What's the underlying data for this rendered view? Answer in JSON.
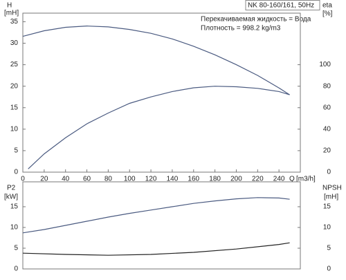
{
  "chart_data": [
    {
      "type": "line",
      "title": "NK 80-160/161, 50Hz",
      "annotations": [
        "Перекачиваемая жидкость = Вода",
        "Плотность = 998.2 kg/m3"
      ],
      "ylabel": "H",
      "yunit": "[mH]",
      "y2label": "eta",
      "y2unit": "[%]",
      "xlabel": "Q",
      "xunit": "[m3/h]",
      "xlim": [
        0,
        260
      ],
      "xticks": [
        0,
        20,
        40,
        60,
        80,
        100,
        120,
        140,
        160,
        180,
        200,
        220,
        240
      ],
      "ylim": [
        0,
        37
      ],
      "yticks": [
        0,
        5,
        10,
        15,
        20,
        25,
        30,
        35
      ],
      "y2lim": [
        0,
        148
      ],
      "y2ticks": [
        0,
        20,
        40,
        60,
        80,
        100
      ],
      "series": [
        {
          "color": "#4a5a80",
          "x": [
            0,
            20,
            40,
            60,
            80,
            100,
            120,
            140,
            160,
            180,
            200,
            220,
            240,
            250
          ],
          "values": [
            31.6,
            32.9,
            33.7,
            34.0,
            33.8,
            33.2,
            32.3,
            31.0,
            29.3,
            27.3,
            25.0,
            22.5,
            19.6,
            18.0
          ]
        },
        {
          "color": "#4a5a80",
          "axis": "y2",
          "x": [
            5,
            20,
            40,
            60,
            80,
            100,
            120,
            140,
            160,
            180,
            200,
            220,
            240,
            250
          ],
          "values": [
            3,
            17,
            32,
            45,
            55,
            64,
            70,
            75,
            78.5,
            80,
            79.5,
            78,
            75,
            72
          ]
        }
      ]
    },
    {
      "type": "line",
      "ylabel": "P2",
      "yunit": "[kW]",
      "y2label": "NPSH",
      "y2unit": "[mH]",
      "xlim": [
        0,
        260
      ],
      "ylim": [
        0,
        21
      ],
      "yticks": [
        0,
        5,
        10,
        15
      ],
      "y2lim": [
        0,
        21
      ],
      "y2ticks": [
        0,
        5,
        10,
        15
      ],
      "series": [
        {
          "color": "#4a5a80",
          "x": [
            0,
            20,
            40,
            60,
            80,
            100,
            120,
            140,
            160,
            180,
            200,
            220,
            240,
            250
          ],
          "values": [
            8.7,
            9.5,
            10.5,
            11.5,
            12.5,
            13.4,
            14.2,
            15.0,
            15.8,
            16.4,
            16.9,
            17.2,
            17.1,
            16.8
          ]
        },
        {
          "color": "#222222",
          "axis": "y2",
          "x": [
            0,
            40,
            80,
            120,
            160,
            200,
            240,
            250
          ],
          "values": [
            3.8,
            3.5,
            3.3,
            3.5,
            4.0,
            4.8,
            5.9,
            6.3
          ]
        }
      ]
    }
  ]
}
